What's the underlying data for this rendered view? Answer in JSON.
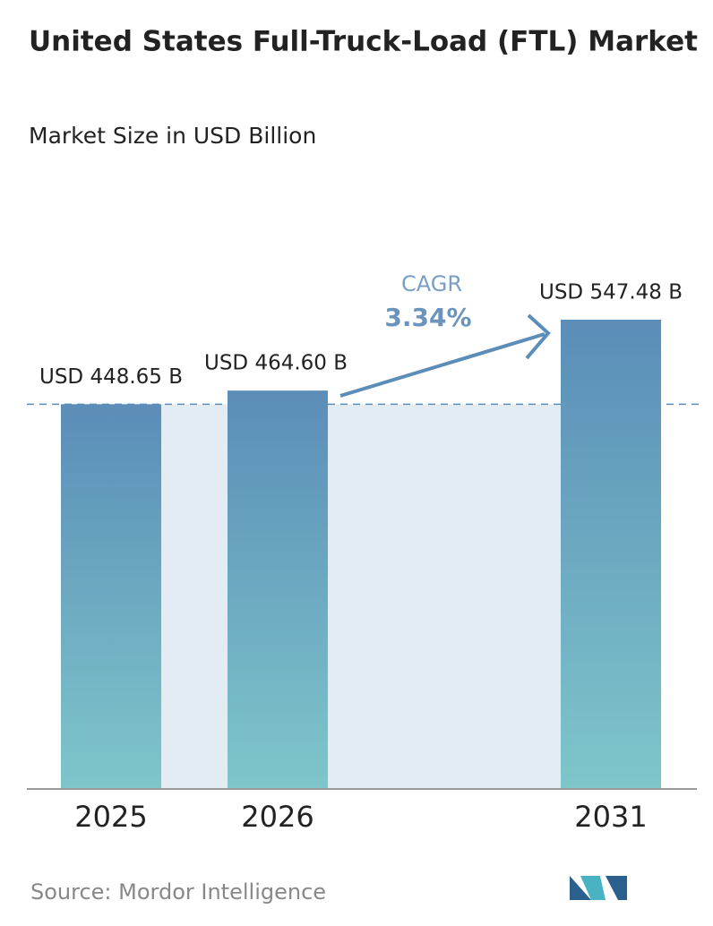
{
  "chart_data": {
    "type": "bar",
    "title": "United States Full-Truck-Load (FTL) Market",
    "subtitle": "Market Size in USD Billion",
    "categories": [
      "2025",
      "2026",
      "2031"
    ],
    "values": [
      448.65,
      464.6,
      547.48
    ],
    "value_labels": [
      "USD 448.65 B",
      "USD 464.60 B",
      "USD 547.48 B"
    ],
    "colors": [
      "#5b8db8",
      "#7ec6ca"
    ],
    "ylim": [
      0,
      560
    ],
    "annotations": [
      "CAGR",
      "3.34%"
    ],
    "source": "Source:  Mordor Intelligence"
  }
}
